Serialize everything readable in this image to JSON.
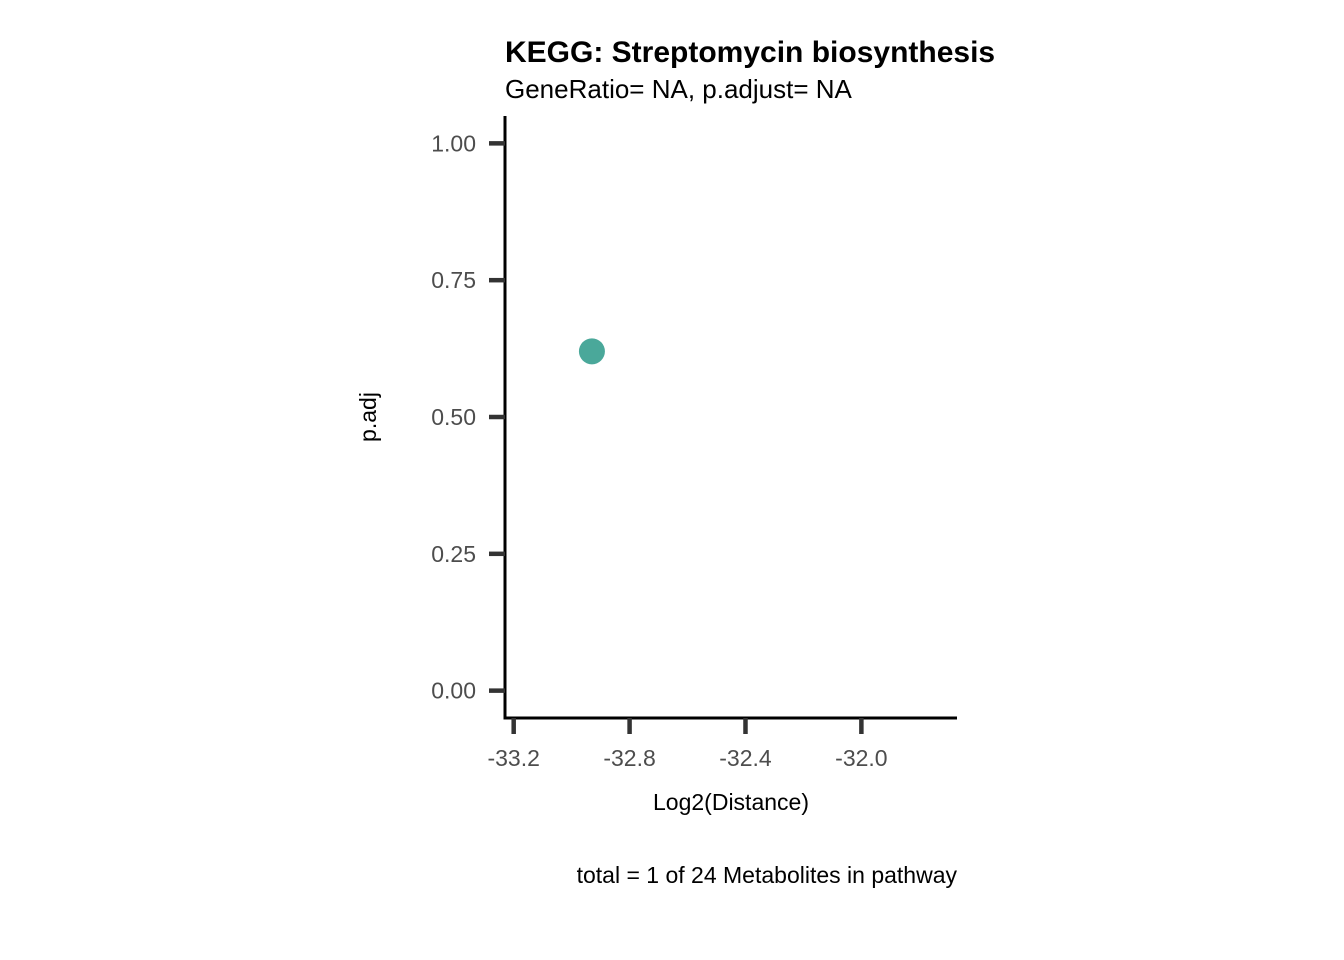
{
  "chart_data": {
    "type": "scatter",
    "title": "KEGG: Streptomycin biosynthesis",
    "subtitle": "GeneRatio= NA, p.adjust= NA",
    "xlabel": "Log2(Distance)",
    "ylabel": "p.adj",
    "caption": "total = 1 of 24 Metabolites in pathway",
    "xlim": [
      -33.23,
      -31.67
    ],
    "ylim": [
      -0.05,
      1.05
    ],
    "x_ticks": [
      -33.2,
      -32.8,
      -32.4,
      -32.0
    ],
    "x_tick_labels": [
      "-33.2",
      "-32.8",
      "-32.4",
      "-32.0"
    ],
    "y_ticks": [
      0.0,
      0.25,
      0.5,
      0.75,
      1.0
    ],
    "y_tick_labels": [
      "0.00",
      "0.25",
      "0.50",
      "0.75",
      "1.00"
    ],
    "grid": false,
    "point_color": "#4aa89a",
    "points": [
      {
        "x": -32.93,
        "y": 0.62
      }
    ]
  }
}
